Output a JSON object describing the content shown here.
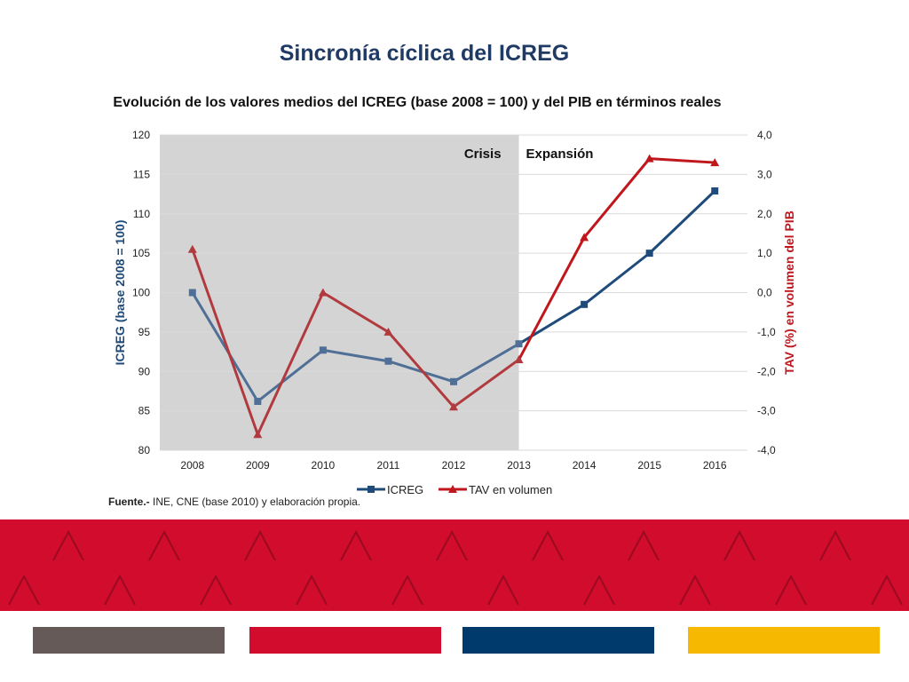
{
  "slide": {
    "title": "Sincronía cíclica del ICREG",
    "source_label": "Fuente.-",
    "source_text": " INE, CNE (base 2010) y elaboración propia."
  },
  "colors": {
    "icreg": "#1f4b7a",
    "tav": "#c0171d",
    "crisis_shade": "#d4d4d4",
    "band_red": "#d20c2c",
    "swatches": [
      "#655a57",
      "#d20c2c",
      "#003a6c",
      "#f6b800"
    ]
  },
  "chart_data": {
    "type": "line",
    "title": "Evolución de los valores medios del ICREG (base 2008 = 100) y del PIB en términos reales",
    "categories": [
      "2008",
      "2009",
      "2010",
      "2011",
      "2012",
      "2013",
      "2014",
      "2015",
      "2016"
    ],
    "series": [
      {
        "name": "ICREG",
        "axis": "left",
        "marker": "square",
        "values": [
          100.0,
          86.2,
          92.7,
          91.3,
          88.7,
          93.5,
          98.5,
          105.0,
          112.9
        ]
      },
      {
        "name": "TAV en volumen",
        "axis": "right",
        "marker": "triangle",
        "values": [
          1.1,
          -3.6,
          0.0,
          -1.0,
          -2.9,
          -1.7,
          1.4,
          3.4,
          3.3
        ]
      }
    ],
    "ylabel": "ICREG (base 2008 = 100)",
    "ylim": [
      80,
      120
    ],
    "yticks": [
      "80",
      "85",
      "90",
      "95",
      "100",
      "105",
      "110",
      "115",
      "120"
    ],
    "y2label": "TAV (%) en volumen del PIB",
    "y2lim": [
      -4,
      4
    ],
    "y2ticks": [
      "-4,0",
      "-3,0",
      "-2,0",
      "-1,0",
      "0,0",
      "1,0",
      "2,0",
      "3,0",
      "4,0"
    ],
    "shaded_region": {
      "label": "Crisis",
      "from": "2008",
      "to": "2013"
    },
    "annotation": "Expansión",
    "legend_position": "bottom",
    "grid": true
  }
}
